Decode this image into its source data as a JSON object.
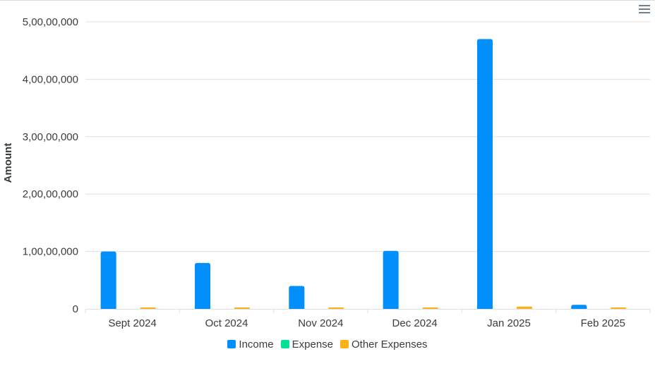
{
  "chart_data": {
    "type": "bar",
    "title": "",
    "xlabel": "",
    "ylabel": "Amount",
    "ylim": [
      0,
      50000000
    ],
    "yticks": [
      "0",
      "1,00,00,000",
      "2,00,00,000",
      "3,00,00,000",
      "4,00,00,000",
      "5,00,00,000"
    ],
    "categories": [
      "Sept 2024",
      "Oct 2024",
      "Nov 2024",
      "Dec 2024",
      "Jan 2025",
      "Feb 2025"
    ],
    "series": [
      {
        "name": "Income",
        "color": "#008ffb",
        "values": [
          10000000,
          8000000,
          4000000,
          10100000,
          47000000,
          700000
        ]
      },
      {
        "name": "Expense",
        "color": "#00e396",
        "values": [
          0,
          0,
          0,
          0,
          0,
          0
        ]
      },
      {
        "name": "Other Expenses",
        "color": "#feb019",
        "values": [
          150000,
          60000,
          60000,
          110000,
          400000,
          150000
        ]
      }
    ],
    "grid": true,
    "legend_position": "bottom"
  },
  "toolbar": {
    "menu_icon": "hamburger-menu-icon"
  }
}
